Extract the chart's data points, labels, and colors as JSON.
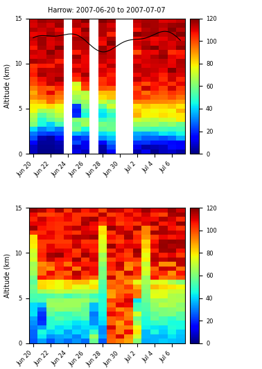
{
  "title": "Harrow: 2007-06-20 to 2007-07-07",
  "ylabel": "Altitude (km)",
  "cmap": "jet",
  "vmin": 0,
  "vmax": 120,
  "colorbar_ticks": [
    0,
    20,
    40,
    60,
    80,
    100,
    120
  ],
  "date_labels": [
    "Jun 20",
    "Jun 22",
    "Jun 24",
    "Jun 26",
    "Jun 28",
    "Jun 30",
    "Jul 2",
    "Jul 4",
    "Jul 6"
  ],
  "date_positions": [
    0,
    2,
    4,
    6,
    8,
    10,
    12,
    14,
    16
  ],
  "n_days": 18,
  "n_alt": 30,
  "obs_available": [
    0,
    1,
    2,
    3,
    5,
    6,
    8,
    9,
    12,
    13,
    14,
    15,
    16,
    17
  ],
  "obs_gaps": [
    4,
    7,
    10,
    11
  ],
  "trop_base": 12.5,
  "trop_amp1": 0.9,
  "trop_freq1": 0.55,
  "trop_amp2": 0.35,
  "trop_freq2": 1.2
}
